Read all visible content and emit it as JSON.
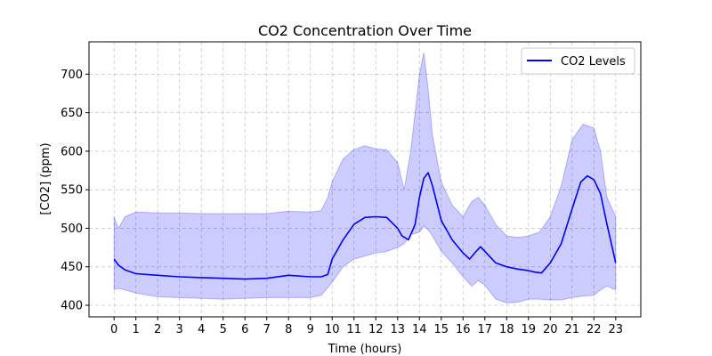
{
  "chart_data": {
    "type": "line",
    "title": "CO2 Concentration Over Time",
    "xlabel": "Time (hours)",
    "ylabel": "[CO2] (ppm)",
    "xlim": [
      -1.15,
      24.15
    ],
    "ylim": [
      385,
      742
    ],
    "x_ticks": [
      0,
      1,
      2,
      3,
      4,
      5,
      6,
      7,
      8,
      9,
      10,
      11,
      12,
      13,
      14,
      15,
      16,
      17,
      18,
      19,
      20,
      21,
      22,
      23
    ],
    "y_ticks": [
      400,
      450,
      500,
      550,
      600,
      650,
      700
    ],
    "grid": true,
    "legend_position": "top-right",
    "colors": {
      "line": "#0000ff",
      "band": "#0000ff"
    },
    "series": [
      {
        "name": "CO2 Levels",
        "x": [
          0,
          0.2,
          0.5,
          1,
          2,
          3,
          4,
          5,
          6,
          7,
          8,
          9,
          9.5,
          9.8,
          10,
          10.5,
          11,
          11.5,
          12,
          12.5,
          13,
          13.2,
          13.5,
          13.8,
          14,
          14.2,
          14.4,
          14.6,
          15,
          15.5,
          16,
          16.3,
          16.6,
          16.8,
          17,
          17.5,
          18,
          18.5,
          19,
          19.3,
          19.6,
          20,
          20.5,
          21,
          21.4,
          21.7,
          22,
          22.3,
          22.6,
          23
        ],
        "values": [
          460,
          452,
          446,
          441,
          439,
          437,
          436,
          435,
          434,
          435,
          439,
          437,
          437,
          440,
          460,
          485,
          505,
          514,
          515,
          514,
          500,
          490,
          485,
          505,
          540,
          565,
          572,
          555,
          510,
          485,
          468,
          460,
          470,
          476,
          470,
          455,
          450,
          447,
          445,
          443,
          442,
          455,
          480,
          525,
          560,
          568,
          563,
          545,
          505,
          455
        ]
      }
    ],
    "band": {
      "x": [
        0,
        0.05,
        0.2,
        0.5,
        1,
        2,
        3,
        4,
        5,
        6,
        7,
        8,
        9,
        9.5,
        9.8,
        10,
        10.5,
        11,
        11.5,
        12,
        12.5,
        13,
        13.3,
        13.6,
        13.8,
        14,
        14.2,
        14.4,
        14.6,
        15,
        15.5,
        16,
        16.4,
        16.7,
        17,
        17.5,
        18,
        18.5,
        19,
        19.5,
        20,
        20.5,
        21,
        21.5,
        22,
        22.3,
        22.6,
        23
      ],
      "upper": [
        515,
        510,
        500,
        515,
        521,
        520,
        520,
        519,
        519,
        519,
        519,
        522,
        521,
        523,
        540,
        560,
        590,
        602,
        607,
        603,
        602,
        585,
        550,
        600,
        650,
        700,
        728,
        680,
        620,
        560,
        530,
        515,
        535,
        540,
        530,
        505,
        490,
        488,
        490,
        495,
        515,
        555,
        615,
        635,
        630,
        600,
        540,
        515
      ],
      "lower": [
        420,
        421,
        422,
        420,
        416,
        411,
        410,
        409,
        408,
        409,
        410,
        410,
        410,
        413,
        423,
        430,
        450,
        460,
        464,
        468,
        470,
        475,
        480,
        492,
        493,
        495,
        503,
        498,
        490,
        470,
        455,
        437,
        425,
        432,
        426,
        408,
        403,
        404,
        408,
        408,
        407,
        407,
        410,
        412,
        413,
        420,
        425,
        420
      ]
    }
  }
}
